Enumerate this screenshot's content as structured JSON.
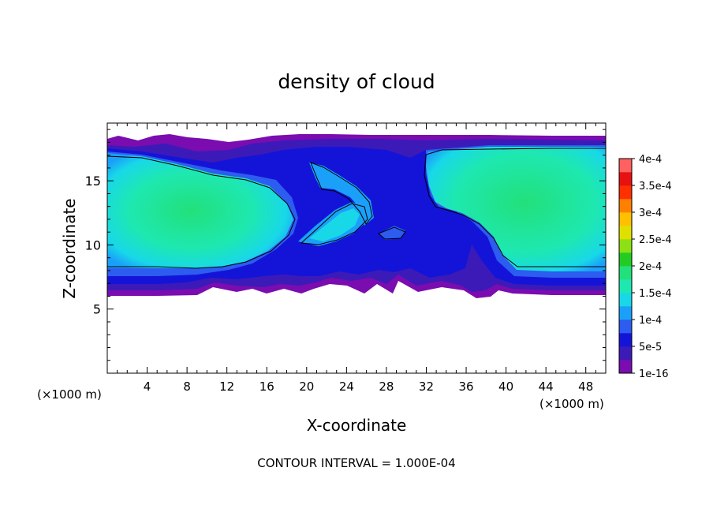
{
  "chart_data": {
    "type": "heatmap",
    "title": "density of cloud",
    "xlabel": "X-coordinate",
    "ylabel": "Z-coordinate",
    "x_unit_left": "(×1000 m)",
    "x_unit_right": "(×1000 m)",
    "xlim": [
      0,
      50
    ],
    "ylim": [
      0,
      19.5
    ],
    "x_ticks": [
      4,
      8,
      12,
      16,
      20,
      24,
      28,
      32,
      36,
      40,
      44,
      48
    ],
    "x_tick_labels": [
      "4",
      "8",
      "12",
      "16",
      "20",
      "24",
      "28",
      "32",
      "36",
      "40",
      "44",
      "48"
    ],
    "y_ticks": [
      5,
      10,
      15
    ],
    "y_tick_labels": [
      "5",
      "10",
      "15"
    ],
    "footer": "CONTOUR INTERVAL = 1.000E-04",
    "colorbar": {
      "labels": [
        "4e-4",
        "3.5e-4",
        "3e-4",
        "2.5e-4",
        "2e-4",
        "1.5e-4",
        "1e-4",
        "5e-5",
        "1e-16"
      ],
      "label_values": [
        0.0004,
        0.00035,
        0.0003,
        0.00025,
        0.0002,
        0.00015,
        0.0001,
        5e-05,
        1e-16
      ],
      "colors": [
        "#7a0cb0",
        "#3c1ab8",
        "#1414d8",
        "#2c5cf0",
        "#1aa0f8",
        "#18d8e8",
        "#1ee8b0",
        "#22e07a",
        "#22cc22",
        "#8ce014",
        "#e0e000",
        "#ffc000",
        "#ff8000",
        "#ff3000",
        "#e81010",
        "#ff6060"
      ]
    },
    "contour_level": 0.0001,
    "cloud_layer": {
      "bottom_z": 6.3,
      "top_z": 18.8,
      "core_value": 0.00016,
      "left_core": {
        "x_range": [
          0,
          14
        ],
        "z_range": [
          9,
          17
        ],
        "value": 0.00016
      },
      "right_core": {
        "x_range": [
          33,
          50
        ],
        "z_range": [
          9,
          17.5
        ],
        "value": 0.00016
      },
      "tongue": {
        "x_range": [
          21,
          29
        ],
        "z_range": [
          10,
          16
        ],
        "value": 0.00014
      }
    }
  }
}
